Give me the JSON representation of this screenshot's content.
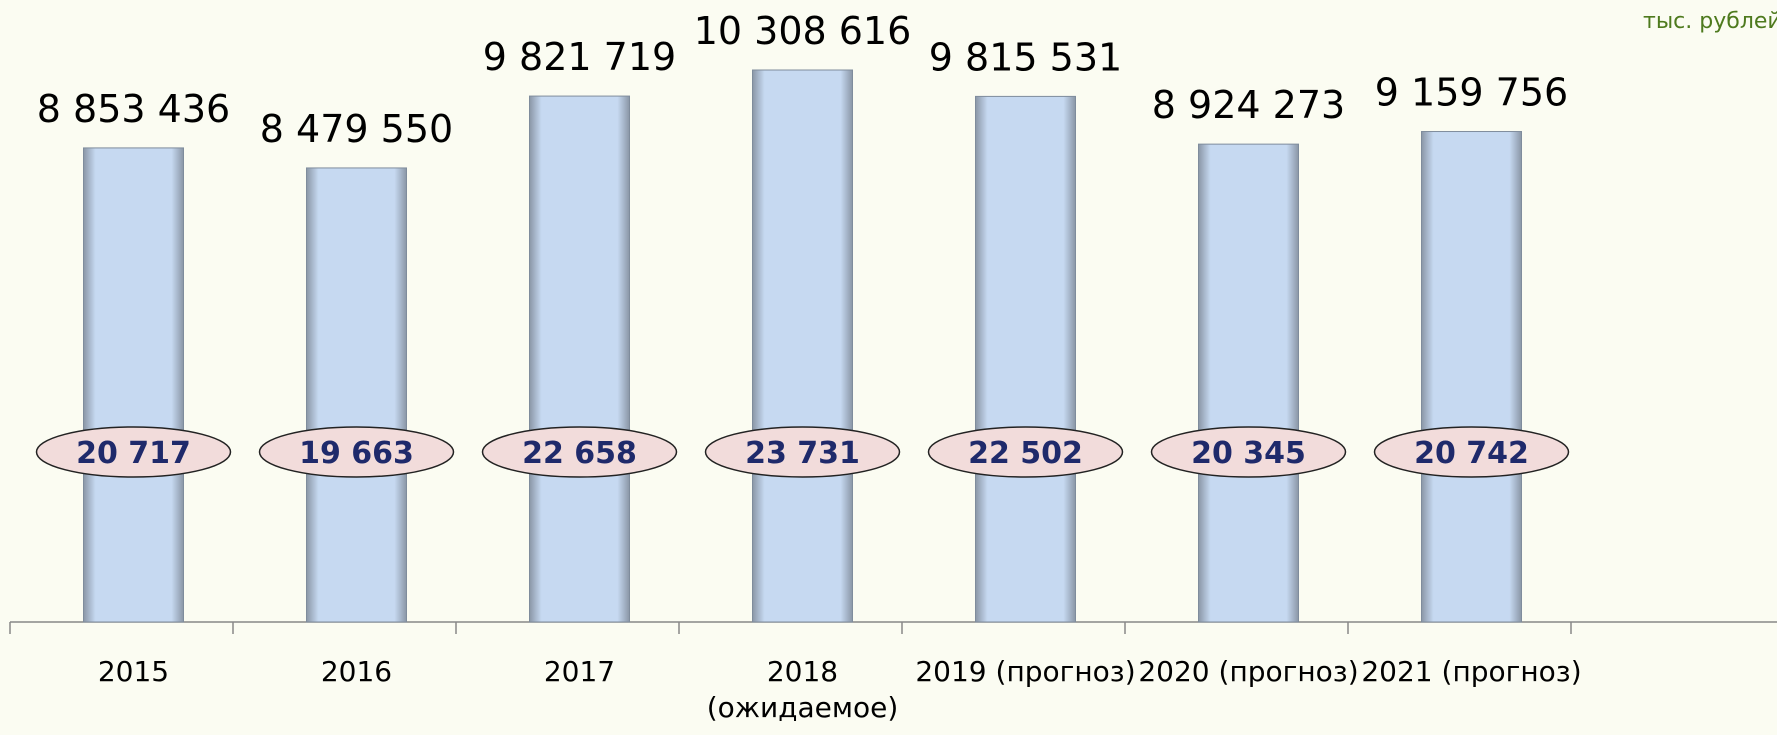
{
  "chart_data": {
    "type": "bar",
    "unit_note": "тыс. рублей",
    "categories": [
      "2015",
      "2016",
      "2017",
      "2018 (ожидаемое)",
      "2019 (прогноз)",
      "2020 (прогноз)",
      "2021 (прогноз)"
    ],
    "series": [
      {
        "color": "#c6d9f1",
        "values": [
          8853436,
          8479550,
          9821719,
          10308616,
          9815531,
          8924273,
          9159756
        ],
        "value_labels": [
          "8 853 436",
          "8 479 550",
          "9 821 719",
          "10 308 616",
          "9 815 531",
          "8 924 273",
          "9 159 756"
        ]
      },
      {
        "color": "#f2dcdb",
        "values": [
          20717,
          19663,
          22658,
          23731,
          22502,
          20345,
          20742
        ],
        "value_labels": [
          "20 717",
          "19 663",
          "22 658",
          "23 731",
          "22 502",
          "20 345",
          "20 742"
        ]
      }
    ]
  }
}
